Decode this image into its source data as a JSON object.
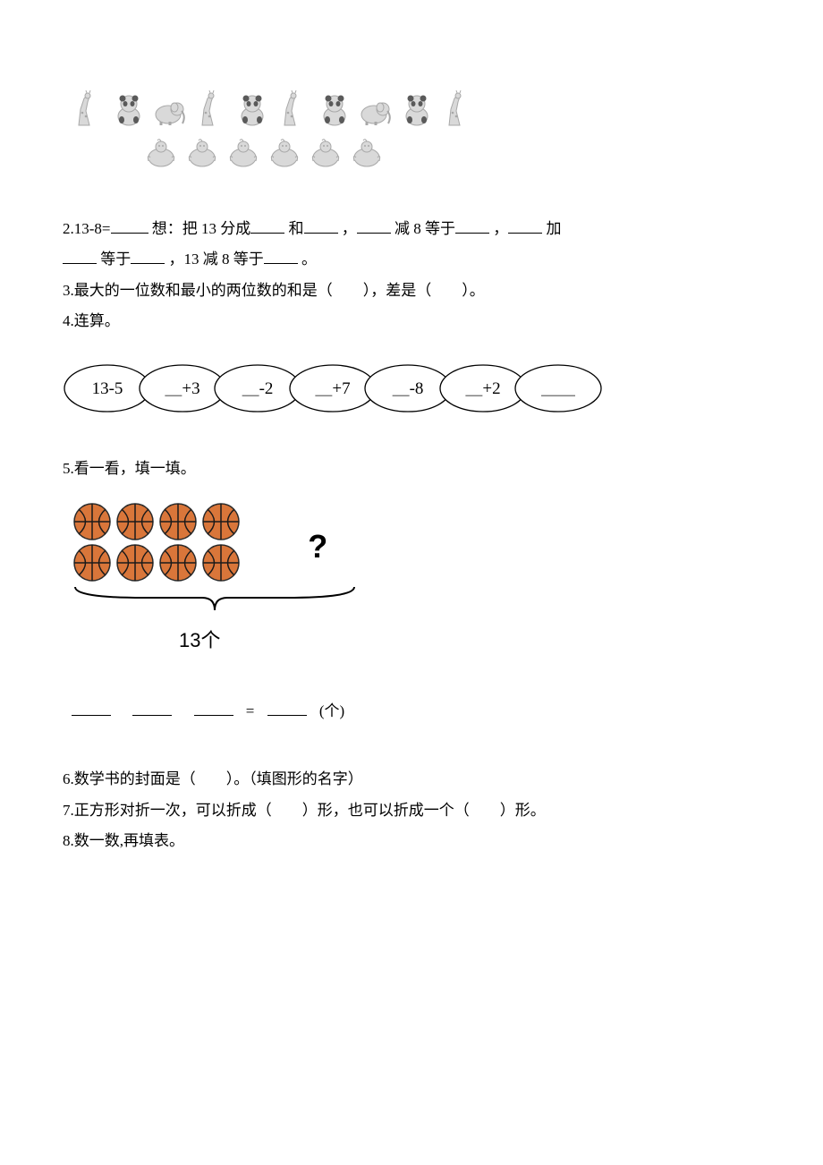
{
  "q1_visual": {
    "animal_sequence": [
      "giraffe",
      "panda",
      "elephant",
      "giraffe",
      "panda",
      "giraffe",
      "panda",
      "elephant",
      "panda",
      "giraffe"
    ],
    "bird_count": 6,
    "colors": {
      "outline": "#a8a8a8",
      "fill": "#d9d9d9",
      "panda_dark": "#5a5a5a"
    }
  },
  "q2": {
    "prefix": "2.13-8=",
    "t1": "想：把 13 分成",
    "t2": "和",
    "t3": "，",
    "t4": "减 8 等于",
    "t5": "，",
    "t6": "加",
    "line2a": "等于",
    "line2b": "，13 减 8 等于",
    "line2c": "。"
  },
  "q3": {
    "text_a": "3.最大的一位数和最小的两位数的和是（　　），差是（　　）。"
  },
  "q4": {
    "label": "4.连算。",
    "chain": {
      "ovals": [
        "13-5",
        "___+3",
        "___-2",
        "___+7",
        "___-8",
        "___+2",
        "______"
      ],
      "stroke": "#000000",
      "fill": "#ffffff",
      "font_size": 19,
      "oval_w": 96,
      "oval_h": 52,
      "overlap": 12
    }
  },
  "q5": {
    "label": "5.看一看，填一填。",
    "basketballs": {
      "row1": 4,
      "row2": 4,
      "ball_fill": "#d9763a",
      "ball_stroke": "#2a2a2a",
      "line_stroke": "#1a1a1a"
    },
    "question_mark": "?",
    "total_label": "13个",
    "bracket_color": "#000000",
    "eq_unit": "(个)"
  },
  "q6": "6.数学书的封面是（　　）。（填图形的名字）",
  "q7": "7.正方形对折一次，可以折成（　　）形，也可以折成一个（　　）形。",
  "q8": "8.数一数,再填表。"
}
